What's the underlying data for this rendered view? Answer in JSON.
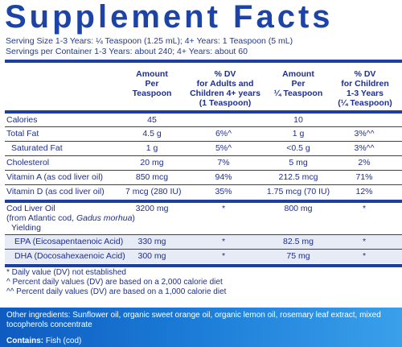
{
  "title": "Supplement Facts",
  "serving_size": "Serving Size 1-3 Years: ¼ Teaspoon (1.25 mL); 4+ Years: 1 Teaspoon (5 mL)",
  "servings_per_container": "Servings per Container 1-3 Years: about 240; 4+ Years: about 60",
  "headers": {
    "amount_tsp": [
      "Amount",
      "Per",
      "Teaspoon"
    ],
    "dv_adult": [
      "% DV",
      "for Adults and",
      "Children 4+ years",
      "(1 Teaspoon)"
    ],
    "amount_quarter": [
      "Amount",
      "Per",
      "¼ Teaspoon"
    ],
    "dv_child": [
      "% DV",
      "for Children",
      "1-3 Years",
      "(¼ Teaspoon)"
    ]
  },
  "rows": [
    {
      "name": "Calories",
      "amt": "45",
      "dv": "",
      "amt_q": "10",
      "dv_q": ""
    },
    {
      "name": "Total Fat",
      "amt": "4.5 g",
      "dv": "6%^",
      "amt_q": "1 g",
      "dv_q": "3%^^"
    },
    {
      "name": "Saturated Fat",
      "amt": "1 g",
      "dv": "5%^",
      "amt_q": "<0.5 g",
      "dv_q": "3%^^"
    },
    {
      "name": "Cholesterol",
      "amt": "20 mg",
      "dv": "7%",
      "amt_q": "5 mg",
      "dv_q": "2%"
    },
    {
      "name": "Vitamin A (as cod liver oil)",
      "amt": "850 mcg",
      "dv": "94%",
      "amt_q": "212.5 mcg",
      "dv_q": "71%"
    },
    {
      "name": "Vitamin D (as cod liver oil)",
      "amt": "7 mcg (280 IU)",
      "dv": "35%",
      "amt_q": "1.75 mcg (70 IU)",
      "dv_q": "12%"
    }
  ],
  "cod_liver": {
    "name": "Cod Liver Oil",
    "source_prefix": "(from Atlantic cod, ",
    "source_italic": "Gadus morhua",
    "source_suffix": ")",
    "amt": "3200 mg",
    "dv": "*",
    "amt_q": "800 mg",
    "dv_q": "*"
  },
  "yielding_label": "Yielding",
  "yield_rows": [
    {
      "name": "EPA (Eicosapentaenoic Acid)",
      "amt": "330 mg",
      "dv": "*",
      "amt_q": "82.5 mg",
      "dv_q": "*"
    },
    {
      "name": "DHA (Docosahexaenoic Acid)",
      "amt": "300 mg",
      "dv": "*",
      "amt_q": "75 mg",
      "dv_q": "*"
    }
  ],
  "footnotes": [
    "* Daily value (DV) not established",
    "^ Percent daily values (DV) are based on a 2,000 calorie diet",
    "^^ Percent daily values (DV) are based on a 1,000 calorie diet"
  ],
  "other_ingredients": "Other ingredients: Sunflower oil, organic sweet orange oil, organic lemon oil, rosemary leaf extract, mixed tocopherols concentrate",
  "contains_label": "Contains:",
  "contains_value": "Fish (cod)"
}
